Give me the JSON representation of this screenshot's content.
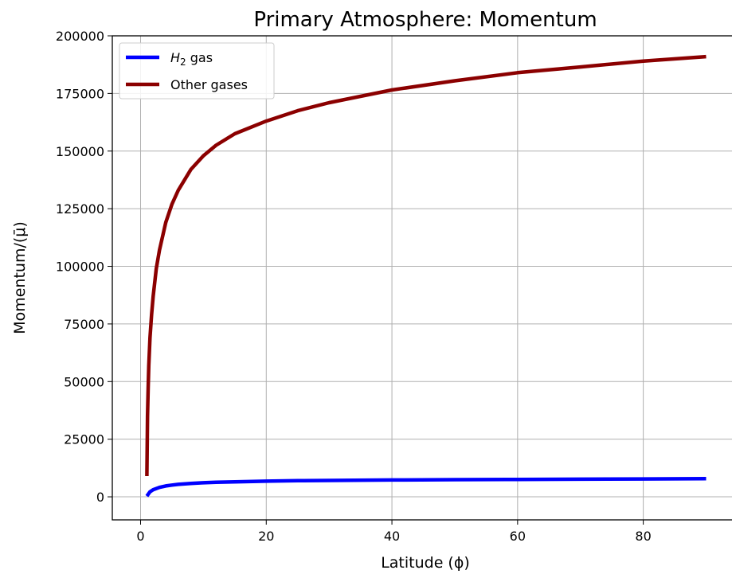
{
  "chart_data": {
    "type": "line",
    "title": "Primary Atmosphere: Momentum",
    "xlabel": "Latitude (ϕ)",
    "ylabel": "Momentum/(μ̄)",
    "xlim": [
      -4.5,
      94.5
    ],
    "ylim": [
      -10000,
      200000
    ],
    "xticks": [
      0,
      20,
      40,
      60,
      80
    ],
    "yticks": [
      0,
      25000,
      50000,
      75000,
      100000,
      125000,
      150000,
      175000,
      200000
    ],
    "grid": true,
    "legend_position": "top-left",
    "series": [
      {
        "name": "H2 gas",
        "color": "#0000ff",
        "x": [
          1,
          1.5,
          2,
          3,
          4,
          5,
          6,
          8,
          10,
          12,
          15,
          20,
          25,
          30,
          40,
          50,
          60,
          70,
          80,
          90
        ],
        "y": [
          300,
          2200,
          3100,
          4100,
          4700,
          5100,
          5400,
          5800,
          6100,
          6300,
          6500,
          6800,
          7000,
          7100,
          7300,
          7450,
          7550,
          7650,
          7750,
          7850
        ]
      },
      {
        "name": "Other gases",
        "color": "#8b0000",
        "x": [
          1,
          1.1,
          1.2,
          1.3,
          1.5,
          1.75,
          2,
          2.5,
          3,
          4,
          5,
          6,
          8,
          10,
          12,
          15,
          20,
          25,
          30,
          40,
          50,
          60,
          70,
          80,
          90
        ],
        "y": [
          9000,
          35000,
          47000,
          57000,
          69000,
          79000,
          87000,
          99000,
          107000,
          119000,
          127000,
          133000,
          142000,
          148000,
          152500,
          157500,
          163000,
          167500,
          171000,
          176500,
          180500,
          184000,
          186500,
          189000,
          191000
        ]
      }
    ]
  }
}
